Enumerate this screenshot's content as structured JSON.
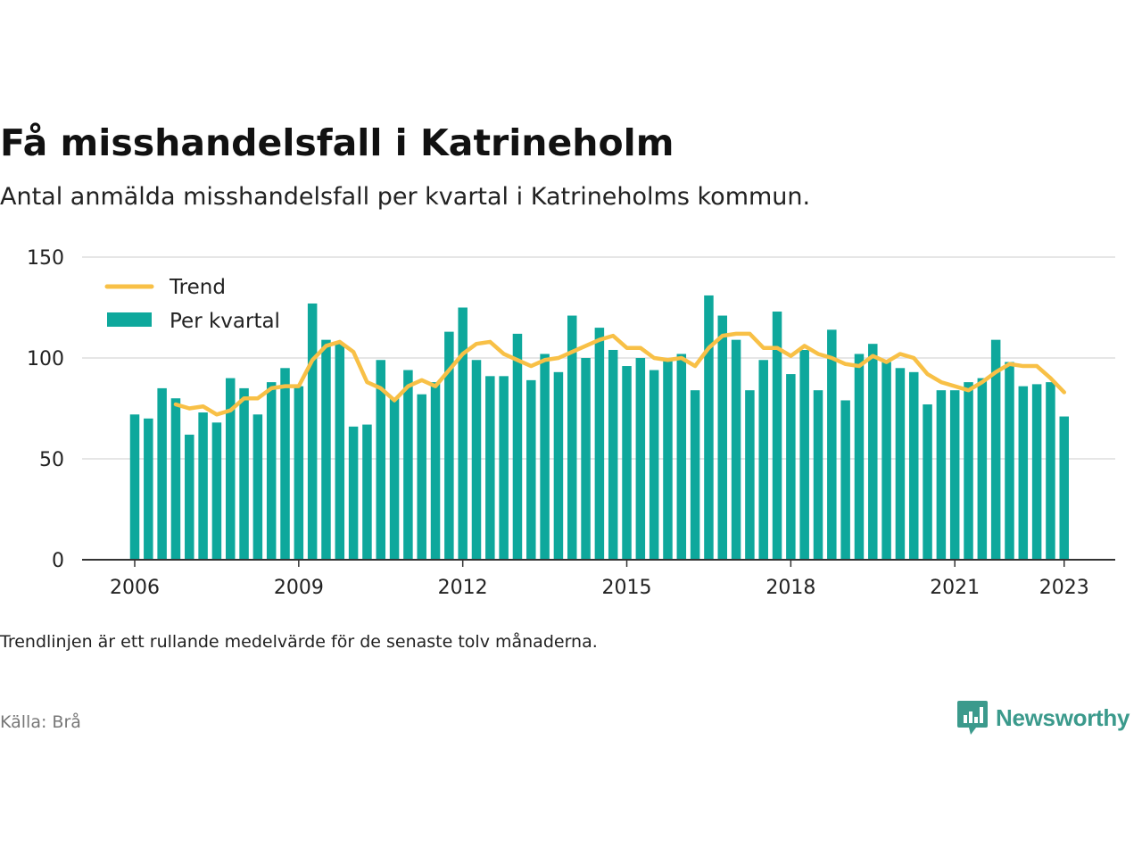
{
  "title": "Få misshandelsfall i Katrineholm",
  "subtitle": "Antal anmälda misshandelsfall per kvartal i Katrineholms kommun.",
  "note": "Trendlinjen är ett rullande medelvärde för de senaste tolv månaderna.",
  "source": "Källa: Brå",
  "brand": {
    "name": "Newsworthy",
    "icon": "newsworthy-logo-icon",
    "color": "#3b9a8c"
  },
  "colors": {
    "bar": "#0ea89c",
    "trend": "#f8c046",
    "grid": "#dddddd",
    "axis": "#333333"
  },
  "chart_data": {
    "type": "bar",
    "ylim": [
      0,
      150
    ],
    "yticks": [
      0,
      50,
      100,
      150
    ],
    "xticks": [
      "2006",
      "2009",
      "2012",
      "2015",
      "2018",
      "2021",
      "2023"
    ],
    "legend": {
      "position": "top-left",
      "entries": [
        "Trend",
        "Per kvartal"
      ]
    },
    "grid": true,
    "series": [
      {
        "name": "Per kvartal",
        "type": "bar",
        "start": "2006 Q1",
        "values": [
          72,
          70,
          85,
          80,
          62,
          73,
          68,
          90,
          85,
          72,
          88,
          95,
          86,
          127,
          109,
          107,
          66,
          67,
          99,
          80,
          94,
          82,
          88,
          113,
          125,
          99,
          91,
          91,
          112,
          89,
          102,
          93,
          121,
          100,
          115,
          104,
          96,
          100,
          94,
          100,
          102,
          84,
          131,
          121,
          109,
          84,
          99,
          123,
          92,
          104,
          84,
          114,
          79,
          102,
          107,
          98,
          95,
          93,
          77,
          84,
          84,
          88,
          90,
          109,
          98,
          86,
          87,
          88,
          71
        ]
      },
      {
        "name": "Trend",
        "type": "line",
        "start": "2006 Q4",
        "values": [
          77,
          75,
          76,
          72,
          74,
          80,
          80,
          85,
          86,
          86,
          99,
          106,
          108,
          103,
          88,
          85,
          79,
          86,
          89,
          86,
          94,
          102,
          107,
          108,
          102,
          99,
          96,
          99,
          100,
          103,
          106,
          109,
          111,
          105,
          105,
          100,
          99,
          100,
          96,
          105,
          111,
          112,
          112,
          105,
          105,
          101,
          106,
          102,
          100,
          97,
          96,
          101,
          98,
          102,
          100,
          92,
          88,
          86,
          84,
          88,
          93,
          97,
          96,
          96,
          90,
          83
        ]
      }
    ]
  }
}
